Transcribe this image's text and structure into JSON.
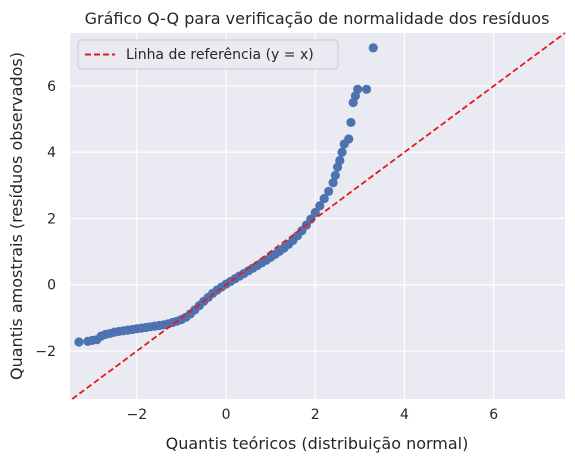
{
  "chart_data": {
    "type": "scatter",
    "title": "Gráfico Q-Q para verificação de normalidade dos resíduos",
    "xlabel": "Quantis teóricos (distribuição normal)",
    "ylabel": "Quantis amostrais (resíduos observados)",
    "xlim": [
      -3.5,
      7.6
    ],
    "ylim": [
      -3.45,
      7.6
    ],
    "xticks": [
      -2,
      0,
      2,
      4,
      6
    ],
    "yticks": [
      -2,
      0,
      2,
      4,
      6
    ],
    "xtick_labels": [
      "−2",
      "0",
      "2",
      "4",
      "6"
    ],
    "ytick_labels": [
      "−2",
      "0",
      "2",
      "4",
      "6"
    ],
    "grid": true,
    "legend_position": "top-left",
    "legend": [
      {
        "label": "Linha de referência (y = x)",
        "color": "#e41a1c",
        "style": "dashed"
      }
    ],
    "reference_line": {
      "slope": 1,
      "intercept": 0
    },
    "series": [
      {
        "color": "#4c72b0",
        "points": [
          [
            -3.3,
            -1.73
          ],
          [
            -3.1,
            -1.71
          ],
          [
            -3.0,
            -1.68
          ],
          [
            -2.9,
            -1.66
          ],
          [
            -2.8,
            -1.55
          ],
          [
            -2.7,
            -1.5
          ],
          [
            -2.6,
            -1.47
          ],
          [
            -2.5,
            -1.43
          ],
          [
            -2.4,
            -1.41
          ],
          [
            -2.3,
            -1.39
          ],
          [
            -2.2,
            -1.37
          ],
          [
            -2.1,
            -1.35
          ],
          [
            -2.0,
            -1.33
          ],
          [
            -1.9,
            -1.31
          ],
          [
            -1.8,
            -1.29
          ],
          [
            -1.7,
            -1.27
          ],
          [
            -1.6,
            -1.25
          ],
          [
            -1.5,
            -1.23
          ],
          [
            -1.4,
            -1.21
          ],
          [
            -1.3,
            -1.18
          ],
          [
            -1.2,
            -1.14
          ],
          [
            -1.1,
            -1.1
          ],
          [
            -1.0,
            -1.05
          ],
          [
            -0.9,
            -0.98
          ],
          [
            -0.8,
            -0.88
          ],
          [
            -0.7,
            -0.76
          ],
          [
            -0.6,
            -0.63
          ],
          [
            -0.5,
            -0.5
          ],
          [
            -0.4,
            -0.38
          ],
          [
            -0.3,
            -0.26
          ],
          [
            -0.2,
            -0.16
          ],
          [
            -0.1,
            -0.07
          ],
          [
            0.0,
            0.02
          ],
          [
            0.1,
            0.1
          ],
          [
            0.2,
            0.18
          ],
          [
            0.3,
            0.26
          ],
          [
            0.4,
            0.34
          ],
          [
            0.5,
            0.42
          ],
          [
            0.6,
            0.5
          ],
          [
            0.7,
            0.58
          ],
          [
            0.8,
            0.66
          ],
          [
            0.9,
            0.74
          ],
          [
            1.0,
            0.83
          ],
          [
            1.1,
            0.92
          ],
          [
            1.2,
            1.01
          ],
          [
            1.3,
            1.11
          ],
          [
            1.4,
            1.22
          ],
          [
            1.5,
            1.34
          ],
          [
            1.6,
            1.48
          ],
          [
            1.7,
            1.63
          ],
          [
            1.8,
            1.8
          ],
          [
            1.9,
            1.98
          ],
          [
            2.0,
            2.18
          ],
          [
            2.1,
            2.38
          ],
          [
            2.2,
            2.6
          ],
          [
            2.3,
            2.82
          ],
          [
            2.4,
            3.08
          ],
          [
            2.45,
            3.3
          ],
          [
            2.5,
            3.55
          ],
          [
            2.55,
            3.75
          ],
          [
            2.6,
            4.0
          ],
          [
            2.65,
            4.25
          ],
          [
            2.75,
            4.4
          ],
          [
            2.8,
            4.9
          ],
          [
            2.85,
            5.5
          ],
          [
            2.9,
            5.7
          ],
          [
            2.95,
            5.9
          ],
          [
            3.15,
            5.9
          ],
          [
            3.3,
            7.15
          ]
        ]
      }
    ]
  },
  "colors": {
    "plot_background": "#eaeaf2",
    "grid": "#ffffff",
    "points": "#4c72b0",
    "reference_line": "#e41a1c",
    "text": "#262626"
  }
}
